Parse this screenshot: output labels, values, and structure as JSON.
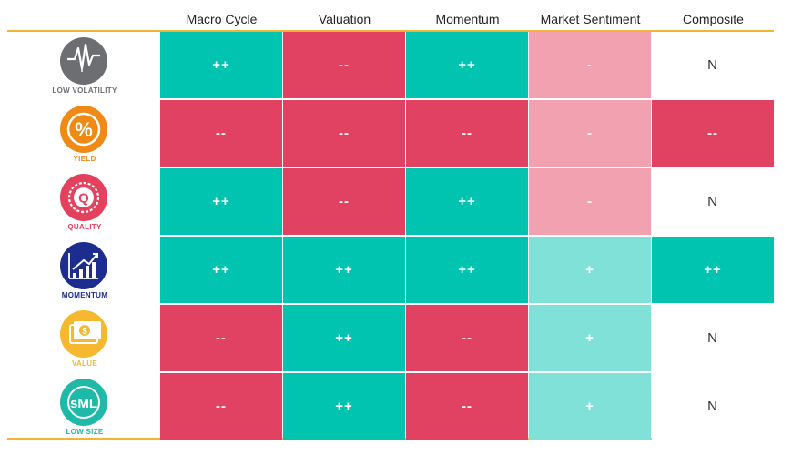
{
  "chart_data": {
    "type": "table",
    "columns": [
      "Macro Cycle",
      "Valuation",
      "Momentum",
      "Market Sentiment",
      "Composite"
    ],
    "rows": [
      {
        "label": "LOW VOLATILITY",
        "icon": "volatility-chart-icon",
        "color": "#6d6e71",
        "values": [
          "++",
          "--",
          "++",
          "-",
          "N"
        ]
      },
      {
        "label": "YIELD",
        "icon": "percent-icon",
        "color": "#ef8a16",
        "values": [
          "--",
          "--",
          "--",
          "-",
          "--"
        ]
      },
      {
        "label": "QUALITY",
        "icon": "quality-badge-icon",
        "color": "#e4415f",
        "values": [
          "++",
          "--",
          "++",
          "-",
          "N"
        ]
      },
      {
        "label": "MOMENTUM",
        "icon": "trend-arrow-icon",
        "color": "#1c2d8f",
        "values": [
          "++",
          "++",
          "++",
          "+",
          "++"
        ]
      },
      {
        "label": "VALUE",
        "icon": "dollar-bill-icon",
        "color": "#f5b82e",
        "values": [
          "--",
          "++",
          "--",
          "+",
          "N"
        ]
      },
      {
        "label": "LOW SIZE",
        "icon": "sml-icon",
        "color": "#1fb9a8",
        "values": [
          "--",
          "++",
          "--",
          "+",
          "N"
        ]
      }
    ],
    "legend_colors": {
      "++": "#00c4b0",
      "--": "#e24262",
      "+": "#80e1d8",
      "-": "#f2a1b0",
      "N": "#ffffff"
    },
    "rule_color": "#f5b335"
  }
}
